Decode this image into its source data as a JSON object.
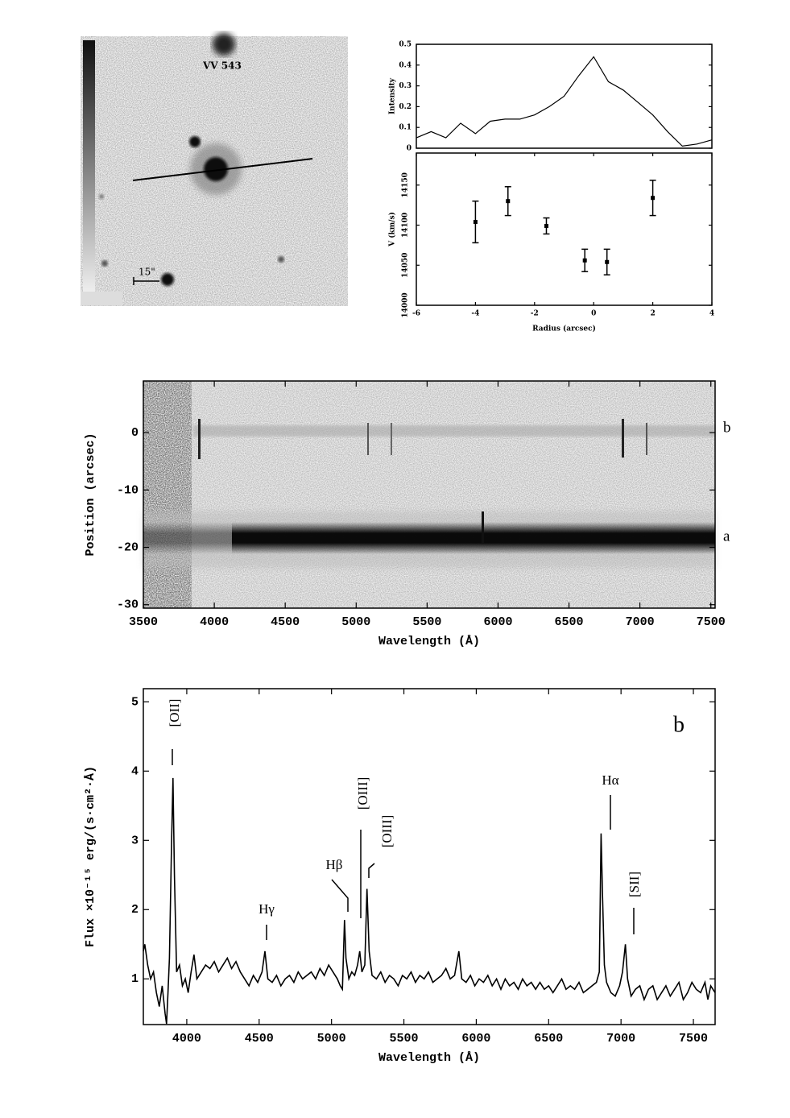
{
  "image_panel": {
    "label": "VV 543",
    "scale": "15\""
  },
  "chart_data": [
    {
      "type": "line",
      "ylabel": "Intensity",
      "xlim": [
        -6,
        4
      ],
      "ylim": [
        0,
        0.5
      ],
      "yticks": [
        0,
        0.1,
        0.2,
        0.3,
        0.4,
        0.5
      ],
      "x": [
        -6,
        -5.5,
        -5,
        -4.5,
        -4,
        -3.5,
        -3,
        -2.5,
        -2,
        -1.5,
        -1,
        -0.5,
        0,
        0.5,
        1,
        1.5,
        2,
        2.5,
        3,
        3.5,
        4
      ],
      "values": [
        0.05,
        0.08,
        0.05,
        0.12,
        0.07,
        0.13,
        0.14,
        0.14,
        0.16,
        0.2,
        0.25,
        0.35,
        0.44,
        0.32,
        0.28,
        0.22,
        0.16,
        0.08,
        0.01,
        0.02,
        0.04
      ],
      "color": "#000000"
    },
    {
      "type": "errorbar",
      "xlabel": "Radius (arcsec)",
      "ylabel": "V (km/s)",
      "xlim": [
        -6,
        4
      ],
      "ylim": [
        14000,
        14190
      ],
      "xticks": [
        -6,
        -4,
        -2,
        0,
        2,
        4
      ],
      "yticks": [
        14000,
        14050,
        14100,
        14150
      ],
      "x": [
        -4,
        -2.9,
        -1.6,
        -0.3,
        0.45,
        2
      ],
      "values": [
        14104,
        14130,
        14099,
        14056,
        14054,
        14134
      ],
      "errors": [
        26,
        18,
        10,
        14,
        16,
        22
      ],
      "color": "#000000"
    },
    {
      "type": "image",
      "xlabel": "Wavelength (Å)",
      "ylabel": "Position (arcsec)",
      "xlim": [
        3500,
        7530
      ],
      "ylim": [
        -30.6,
        9
      ],
      "xticks": [
        3500,
        4000,
        4500,
        5000,
        5500,
        6000,
        6500,
        7000,
        7500
      ],
      "yticks": [
        0,
        -10,
        -20,
        -30
      ],
      "annotations": [
        "b",
        "a"
      ]
    },
    {
      "type": "line",
      "xlabel": "Wavelength (Å)",
      "ylabel": "Flux ×10⁻¹⁵ erg/(s·cm²·Å)",
      "xlim": [
        3700,
        7650
      ],
      "ylim": [
        0.34,
        5.19
      ],
      "xticks": [
        4000,
        4500,
        5000,
        5500,
        6000,
        6500,
        7000,
        7500
      ],
      "yticks": [
        1,
        2,
        3,
        4,
        5
      ],
      "annotations": [
        "[OII]",
        "Hγ",
        "Hβ",
        "[OIII]",
        "[OIII]",
        "Hα",
        "[SII]",
        "b"
      ],
      "color": "#000000",
      "x": [
        3700,
        3710,
        3730,
        3750,
        3770,
        3790,
        3810,
        3830,
        3850,
        3860,
        3870,
        3880,
        3895,
        3905,
        3915,
        3930,
        3950,
        3970,
        3990,
        4010,
        4030,
        4050,
        4070,
        4100,
        4130,
        4160,
        4190,
        4220,
        4250,
        4280,
        4310,
        4340,
        4370,
        4400,
        4430,
        4460,
        4490,
        4520,
        4540,
        4560,
        4590,
        4620,
        4650,
        4680,
        4710,
        4740,
        4770,
        4800,
        4830,
        4860,
        4890,
        4920,
        4950,
        4980,
        5010,
        5040,
        5060,
        5075,
        5090,
        5100,
        5120,
        5140,
        5160,
        5180,
        5195,
        5210,
        5230,
        5245,
        5260,
        5280,
        5310,
        5340,
        5370,
        5400,
        5430,
        5460,
        5490,
        5520,
        5550,
        5580,
        5610,
        5640,
        5670,
        5700,
        5730,
        5760,
        5790,
        5820,
        5850,
        5880,
        5900,
        5930,
        5960,
        5990,
        6020,
        6050,
        6080,
        6110,
        6140,
        6170,
        6200,
        6230,
        6260,
        6290,
        6320,
        6350,
        6380,
        6410,
        6440,
        6470,
        6500,
        6530,
        6560,
        6590,
        6620,
        6650,
        6680,
        6710,
        6740,
        6770,
        6800,
        6830,
        6850,
        6862,
        6872,
        6885,
        6900,
        6930,
        6960,
        6990,
        7010,
        7030,
        7045,
        7070,
        7100,
        7130,
        7160,
        7190,
        7220,
        7250,
        7280,
        7310,
        7340,
        7370,
        7400,
        7430,
        7460,
        7490,
        7520,
        7550,
        7580,
        7600,
        7620,
        7650
      ],
      "values": [
        1.4,
        1.5,
        1.2,
        1.0,
        1.1,
        0.8,
        0.6,
        0.9,
        0.5,
        0.35,
        0.8,
        1.3,
        3.0,
        3.9,
        2.5,
        1.1,
        1.2,
        0.9,
        1.0,
        0.8,
        1.1,
        1.35,
        1.0,
        1.1,
        1.2,
        1.15,
        1.25,
        1.1,
        1.2,
        1.3,
        1.15,
        1.25,
        1.1,
        1.0,
        0.9,
        1.05,
        0.95,
        1.1,
        1.4,
        1.0,
        0.95,
        1.05,
        0.9,
        1.0,
        1.05,
        0.95,
        1.1,
        1.0,
        1.05,
        1.1,
        1.0,
        1.15,
        1.05,
        1.2,
        1.1,
        1.0,
        0.9,
        0.85,
        1.85,
        1.3,
        1.0,
        1.1,
        1.05,
        1.2,
        1.4,
        1.1,
        1.2,
        2.3,
        1.4,
        1.05,
        1.0,
        1.1,
        0.95,
        1.05,
        1.0,
        0.9,
        1.05,
        1.0,
        1.1,
        0.95,
        1.05,
        1.0,
        1.1,
        0.95,
        1.0,
        1.05,
        1.15,
        1.0,
        1.05,
        1.4,
        1.0,
        0.95,
        1.05,
        0.9,
        1.0,
        0.95,
        1.05,
        0.9,
        1.0,
        0.85,
        1.0,
        0.9,
        0.95,
        0.85,
        1.0,
        0.9,
        0.95,
        0.85,
        0.95,
        0.85,
        0.9,
        0.8,
        0.9,
        1.0,
        0.85,
        0.9,
        0.85,
        0.95,
        0.8,
        0.85,
        0.9,
        0.95,
        1.1,
        3.1,
        2.2,
        1.2,
        0.95,
        0.8,
        0.75,
        0.9,
        1.1,
        1.5,
        1.0,
        0.75,
        0.85,
        0.9,
        0.7,
        0.85,
        0.9,
        0.7,
        0.8,
        0.9,
        0.75,
        0.85,
        0.95,
        0.7,
        0.8,
        0.95,
        0.85,
        0.8,
        0.95,
        0.7,
        0.9,
        0.8
      ]
    }
  ]
}
